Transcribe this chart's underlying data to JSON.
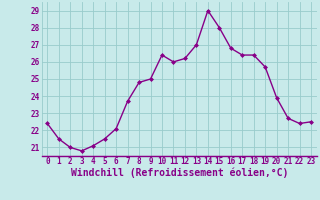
{
  "x": [
    0,
    1,
    2,
    3,
    4,
    5,
    6,
    7,
    8,
    9,
    10,
    11,
    12,
    13,
    14,
    15,
    16,
    17,
    18,
    19,
    20,
    21,
    22,
    23
  ],
  "y": [
    22.4,
    21.5,
    21.0,
    20.8,
    21.1,
    21.5,
    22.1,
    23.7,
    24.8,
    25.0,
    26.4,
    26.0,
    26.2,
    27.0,
    29.0,
    28.0,
    26.8,
    26.4,
    26.4,
    25.7,
    23.9,
    22.7,
    22.4,
    22.5
  ],
  "line_color": "#880088",
  "marker": "D",
  "marker_size": 2.0,
  "bg_color": "#c8eaea",
  "grid_color": "#99cccc",
  "xlabel": "Windchill (Refroidissement éolien,°C)",
  "xlabel_color": "#880088",
  "ylim": [
    20.5,
    29.5
  ],
  "yticks": [
    21,
    22,
    23,
    24,
    25,
    26,
    27,
    28,
    29
  ],
  "xticks": [
    0,
    1,
    2,
    3,
    4,
    5,
    6,
    7,
    8,
    9,
    10,
    11,
    12,
    13,
    14,
    15,
    16,
    17,
    18,
    19,
    20,
    21,
    22,
    23
  ],
  "tick_color": "#880088",
  "tick_fontsize": 5.5,
  "xlabel_fontsize": 7.0,
  "linewidth": 1.0
}
